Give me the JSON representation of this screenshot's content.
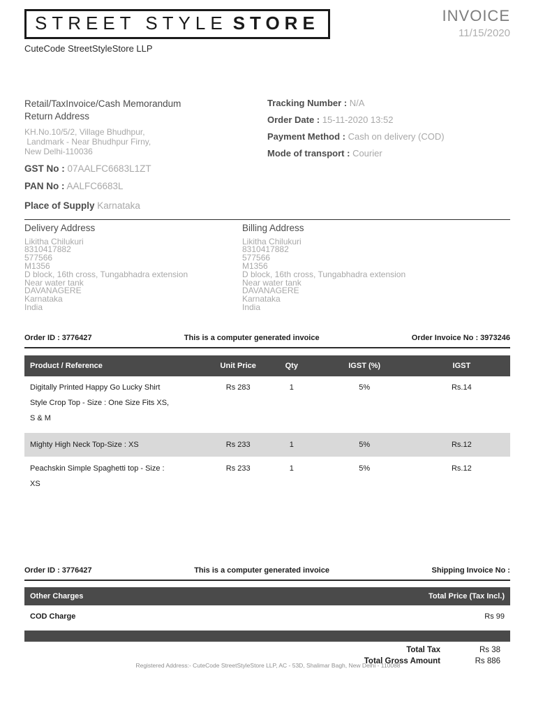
{
  "header": {
    "logo_part1": "STREET STYLE",
    "logo_part2": "STORE",
    "company": "CuteCode StreetStyleStore LLP",
    "invoice_title": "INVOICE",
    "invoice_date": "11/15/2020"
  },
  "meta": {
    "doc_type": "Retail/TaxInvoice/Cash Memorandum",
    "return_address_label": "Return Address",
    "return_address": "KH.No.10/5/2, Village Bhudhpur,\n Landmark - Near Bhudhpur Firny,\nNew Delhi-110036",
    "gst_label": "GST No :",
    "gst_value": "07AALFC6683L1ZT",
    "pan_label": "PAN No :",
    "pan_value": "AALFC6683L",
    "place_of_supply_label": "Place of Supply",
    "place_of_supply_value": "Karnataka",
    "tracking_label": "Tracking Number :",
    "tracking_value": "N/A",
    "order_date_label": "Order Date :",
    "order_date_value": "15-11-2020 13:52",
    "payment_method_label": "Payment Method :",
    "payment_method_value": "Cash on delivery (COD)",
    "transport_label": "Mode of transport :",
    "transport_value": "Courier"
  },
  "addresses": {
    "delivery_label": "Delivery Address",
    "billing_label": "Billing Address",
    "lines": [
      "Likitha Chilukuri",
      "8310417882",
      "577566",
      "M1356",
      "D block, 16th cross, Tungabhadra extension",
      "Near water tank",
      "DAVANAGERE",
      "Karnataka",
      "India"
    ]
  },
  "order_bar_1": {
    "left": "Order ID : 3776427",
    "center": "This is a computer generated invoice",
    "right": "Order Invoice No : 3973246"
  },
  "items_table": {
    "headers": [
      "Product / Reference",
      "Unit Price",
      "Qty",
      "IGST (%)",
      "IGST"
    ],
    "rows": [
      {
        "product": [
          "Digitally Printed Happy Go Lucky Shirt",
          "Style Crop Top - Size : One Size Fits XS,",
          "S & M"
        ],
        "unit_price": "Rs 283",
        "qty": "1",
        "igst_pct": "5%",
        "igst": "Rs.14"
      },
      {
        "product": [
          "Mighty High Neck Top-Size : XS"
        ],
        "unit_price": "Rs 233",
        "qty": "1",
        "igst_pct": "5%",
        "igst": "Rs.12"
      },
      {
        "product": [
          "Peachskin Simple Spaghetti top - Size :",
          "XS"
        ],
        "unit_price": "Rs 233",
        "qty": "1",
        "igst_pct": "5%",
        "igst": "Rs.12"
      }
    ]
  },
  "order_bar_2": {
    "left": "Order ID : 3776427",
    "center": "This is a computer generated invoice",
    "right": "Shipping Invoice No :"
  },
  "charges": {
    "header_left": "Other Charges",
    "header_right": "Total Price (Tax Incl.)",
    "cod_label": "COD Charge",
    "cod_value": "Rs 99"
  },
  "totals": [
    {
      "label": "Total Tax",
      "value": "Rs 38"
    },
    {
      "label": "Total Gross Amount",
      "value": "Rs 886"
    }
  ],
  "footer": "Registered Address:- CuteCode StreetStyleStore LLP, AC - 53D, Shalimar Bagh, New Delhi - 110088",
  "colors": {
    "bar_dark": "#4a4a4a",
    "row_alt": "#d9d9d9",
    "label_dark": "#4c4c4c",
    "value_gray": "#a8a8a8",
    "invoice_title_gray": "#7d7d7d",
    "invoice_date_gray": "#aeaeae"
  }
}
